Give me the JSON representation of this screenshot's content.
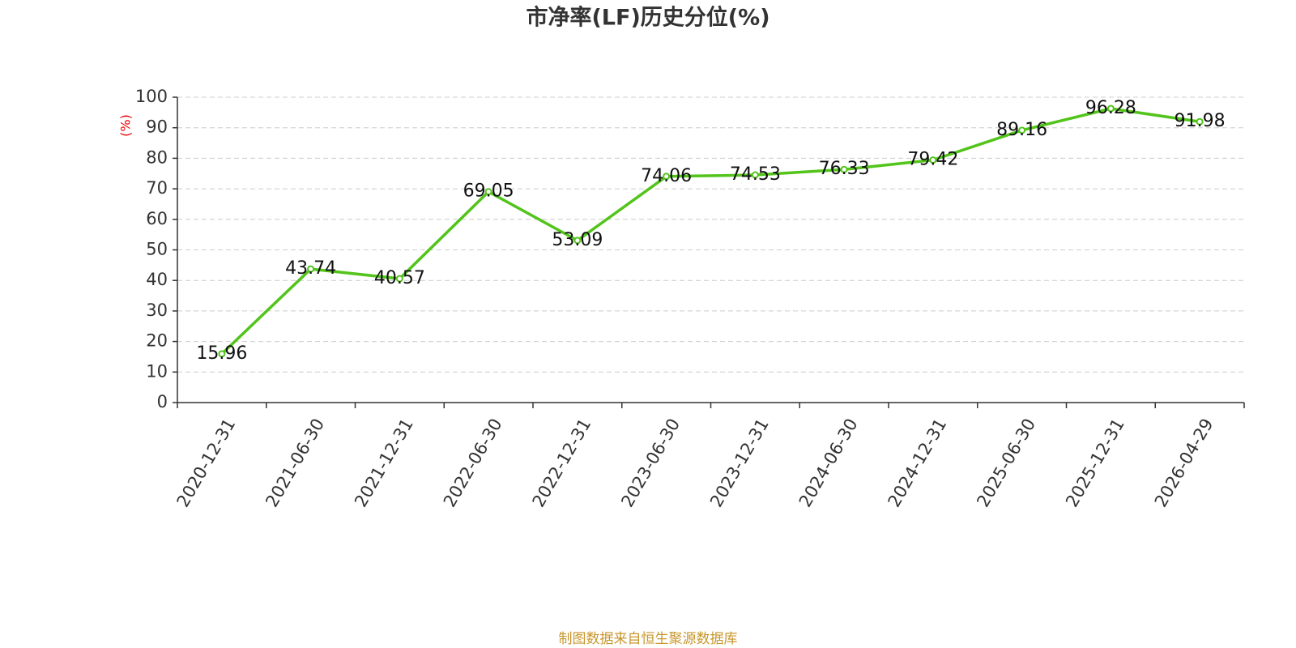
{
  "chart_data": {
    "type": "line",
    "title": "市净率(LF)历史分位(%)",
    "y_label": "(%)",
    "categories": [
      "2020-12-31",
      "2021-06-30",
      "2021-12-31",
      "2022-06-30",
      "2022-12-31",
      "2023-06-30",
      "2023-12-31",
      "2024-06-30",
      "2024-12-31",
      "2025-06-30",
      "2025-12-31",
      "2026-04-29"
    ],
    "values": [
      15.96,
      43.74,
      40.57,
      69.05,
      53.09,
      74.06,
      74.53,
      76.33,
      79.42,
      89.16,
      96.28,
      91.98
    ],
    "color": "#52c41a",
    "ylim": [
      0,
      100
    ],
    "yticks": [
      0,
      10,
      20,
      30,
      40,
      50,
      60,
      70,
      80,
      90,
      100
    ],
    "grid": true,
    "source": "制图数据来自恒生聚源数据库"
  }
}
